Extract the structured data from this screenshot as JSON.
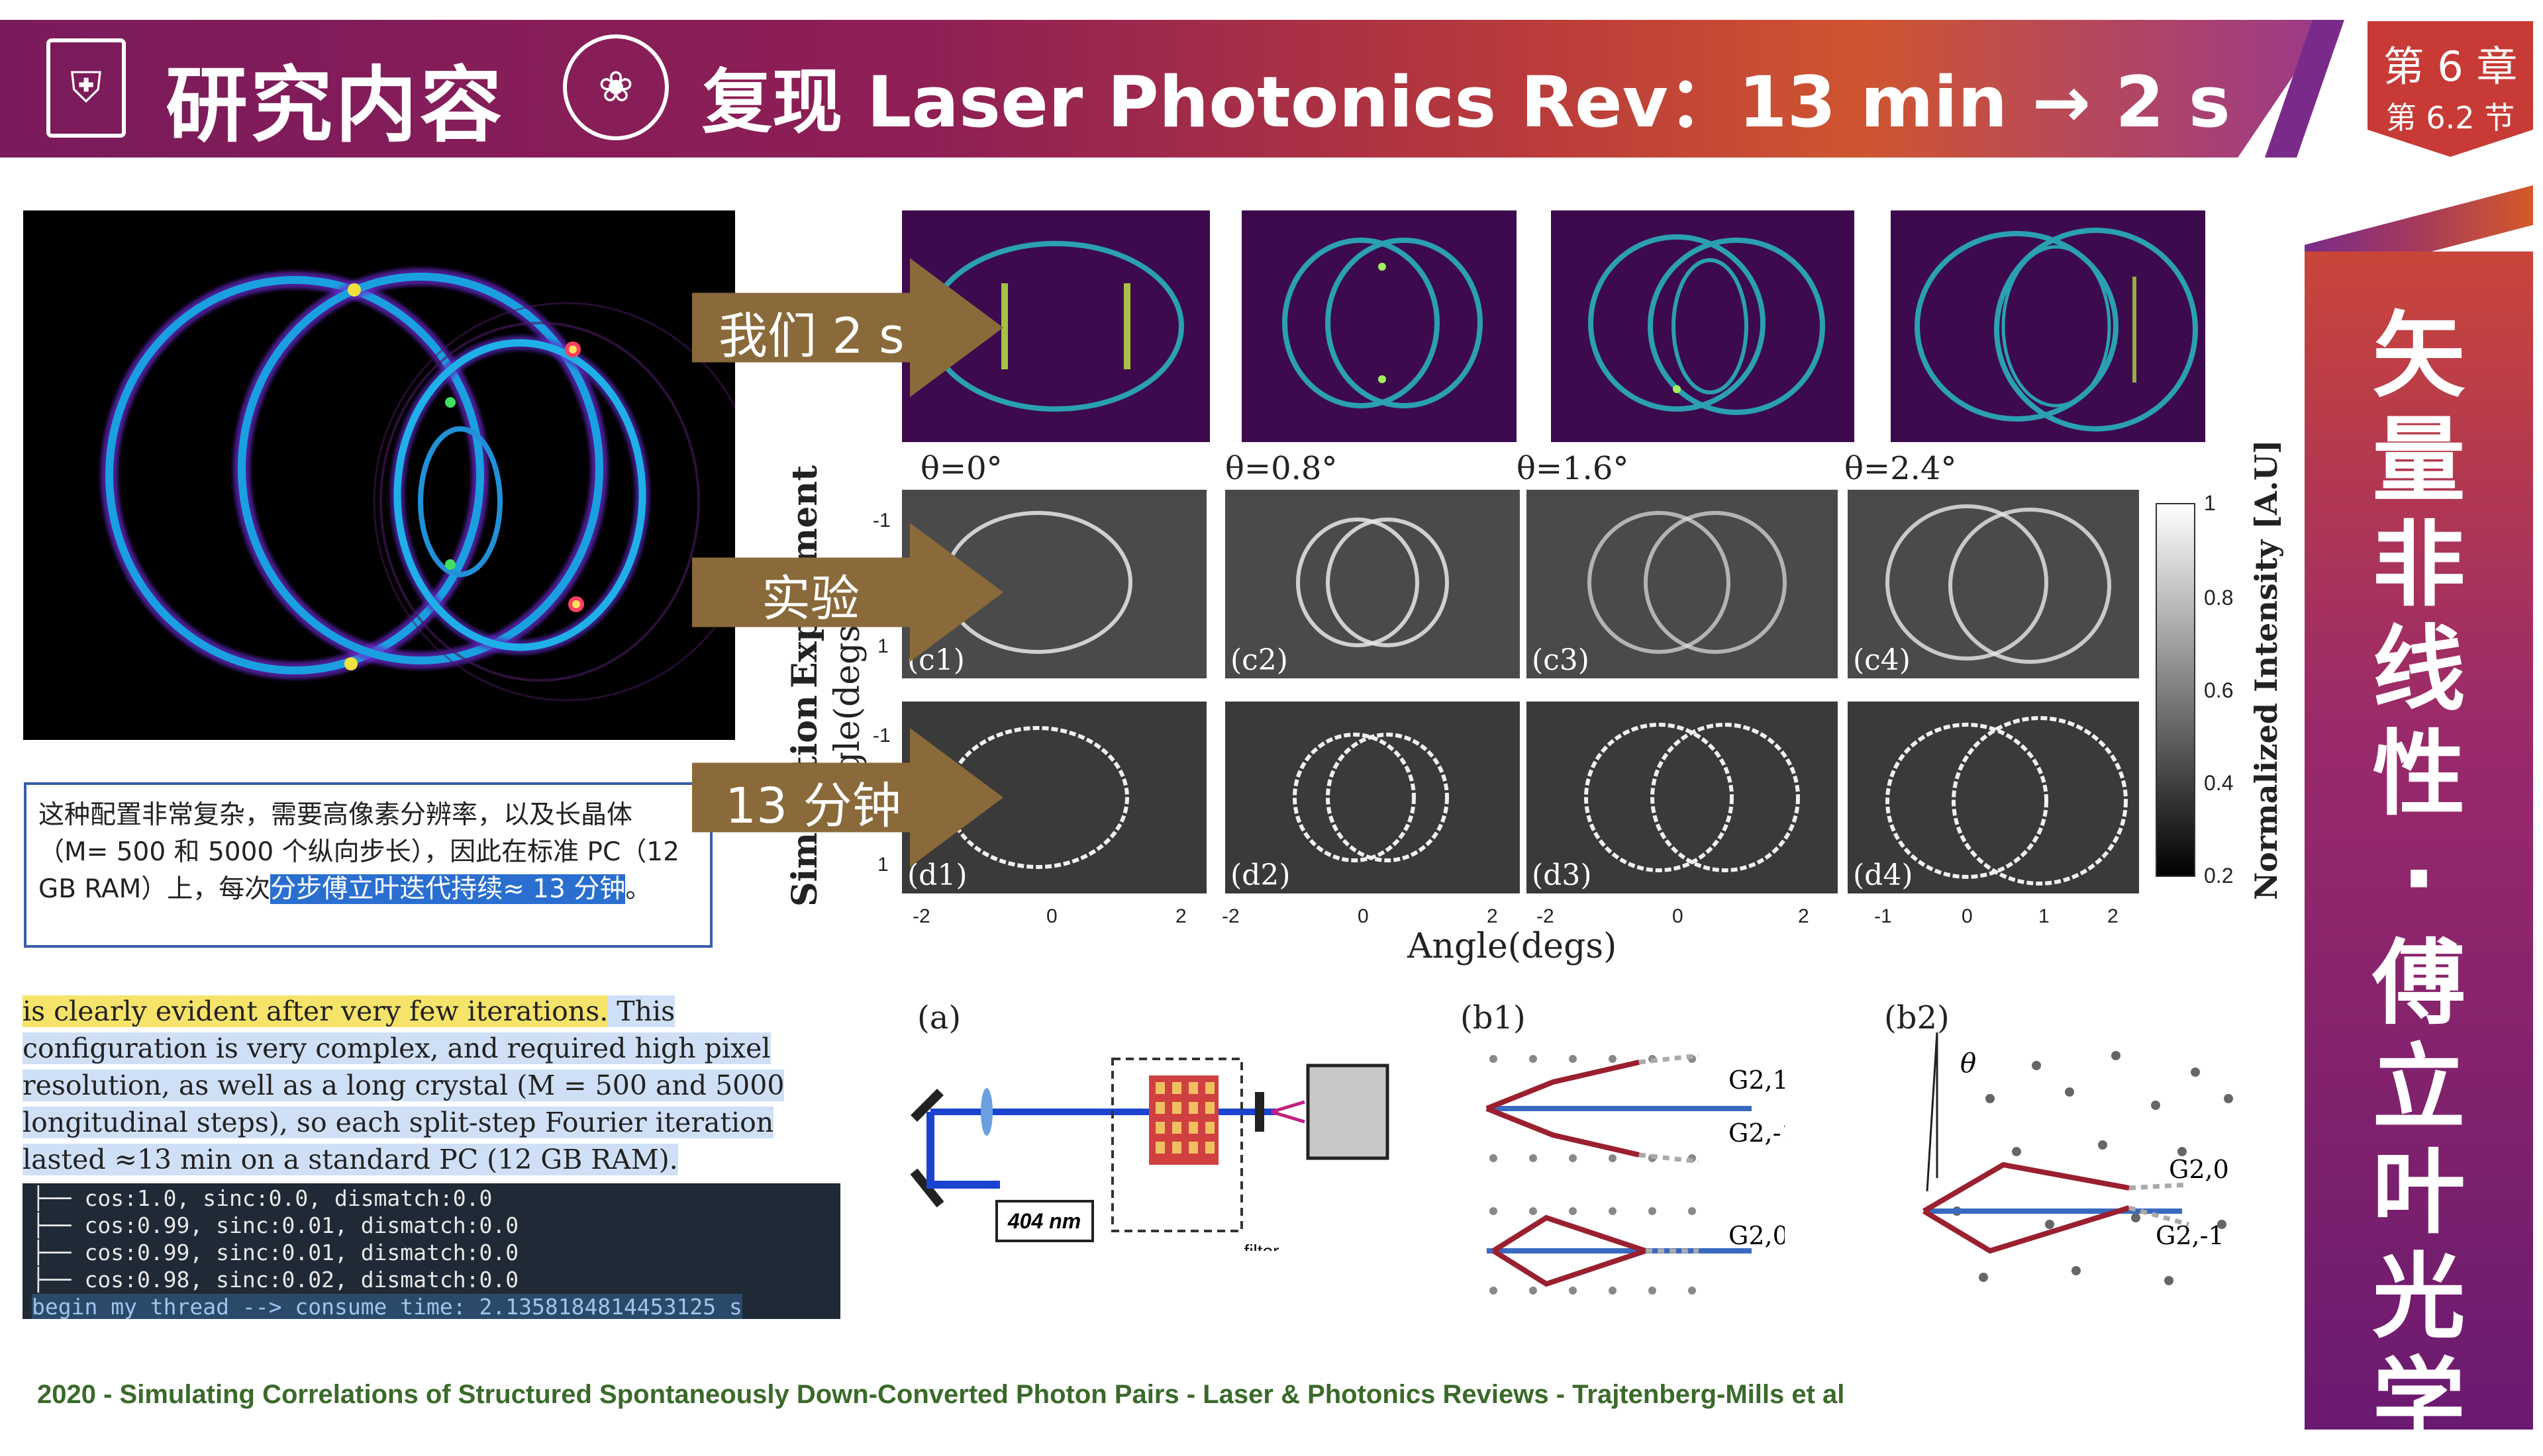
{
  "header": {
    "title": "研究内容",
    "subtitle": "复现 Laser Photonics Rev：13 min → 2 s"
  },
  "chapter": {
    "chapter": "第 6 章",
    "section": "第 6.2 节"
  },
  "sidebar": {
    "chars": [
      "矢",
      "量",
      "非",
      "线",
      "性",
      "·",
      "傅",
      "立",
      "叶",
      "光",
      "学"
    ]
  },
  "arrows": {
    "ours": "我们 2 s",
    "experiment": "实验",
    "sim13": "13 分钟"
  },
  "figure": {
    "angles": [
      "θ=0°",
      "θ=0.8°",
      "θ=1.6°",
      "θ=2.4°"
    ],
    "row_c": [
      "(c1)",
      "(c2)",
      "(c3)",
      "(c4)"
    ],
    "row_d": [
      "(d1)",
      "(d2)",
      "(d3)",
      "(d4)"
    ],
    "ylabel_exp": "Experiment",
    "ylabel_sim": "Simulation",
    "ylabel_angle": "Angle(degs)",
    "ytick_top": "-1",
    "ytick_bottom": "1",
    "xticks_1": [
      "-2",
      "0",
      "2"
    ],
    "xticks_2": [
      "-2",
      "0",
      "2"
    ],
    "xticks_3": [
      "-2",
      "0",
      "2"
    ],
    "xticks_4": [
      "-1",
      "0",
      "1",
      "2"
    ],
    "xlabel": "Angle(degs)",
    "colorbar_title": "Normalized Intensity [A.U]",
    "colorbar_ticks": [
      "1",
      "0.8",
      "0.6",
      "0.4",
      "0.2"
    ]
  },
  "diagram": {
    "a_label": "(a)",
    "b1_label": "(b1)",
    "b2_label": "(b2)",
    "wavelength": "404 nm",
    "filter": "filter",
    "g21": "G2,1",
    "g2m1": "G2,-1",
    "g20": "G2,0",
    "theta": "θ"
  },
  "cn_text": {
    "normal": "这种配置非常复杂，需要高像素分辨率，以及长晶体（M= 500 和 5000 个纵向步长），因此在标准 PC（12 GB RAM）上，每次",
    "highlight": "分步傅立叶迭代持续≈ 13 分钟",
    "end": "。"
  },
  "en_text": {
    "yellow": "is clearly evident after very few iterations.",
    "blue": " This configuration is very complex, and required high pixel resolution, as well as a long crystal (M = 500 and 5000 longitudinal steps), so each split-step Fourier iteration lasted ≈13 min on a standard PC (12 GB RAM)."
  },
  "terminal": {
    "lines": [
      "├── cos:1.0, sinc:0.0, dismatch:0.0",
      "├── cos:0.99, sinc:0.01, dismatch:0.0",
      "├── cos:0.99, sinc:0.01, dismatch:0.0",
      "├── cos:0.98, sinc:0.02, dismatch:0.0"
    ],
    "last": "begin my thread --> consume time: 2.1358184814453125 s"
  },
  "footer": "2020 - Simulating Correlations of Structured Spontaneously Down-Converted Photon Pairs - Laser & Photonics Reviews - Trajtenberg-Mills et al"
}
